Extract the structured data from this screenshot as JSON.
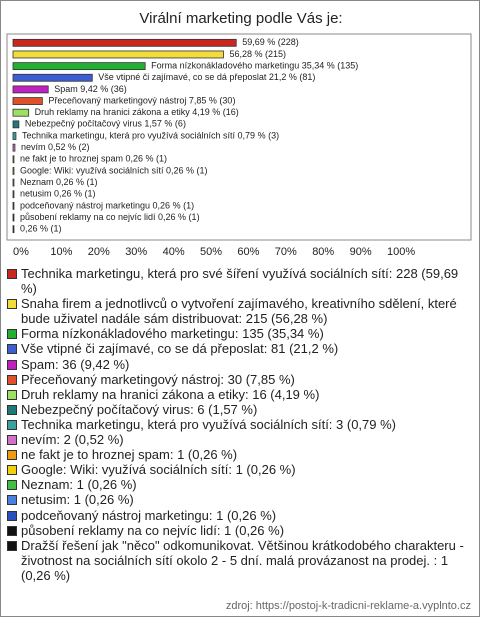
{
  "chart_data": {
    "type": "hbar",
    "title": "Virální marketing podle Vás je:",
    "categories": [
      "Technika marketingu, která pro své šíření využívá sociálních sítí: 228 (59,69 %)",
      "Snaha firem a jednotlivců o vytvoření zajímavého, kreativního sdělení, které bude uživatel nadále sám distribuovat: 215 (56,28 %)",
      "Forma nízkonákladového marketingu: 135 (35,34 %)",
      "Vše vtipné či zajímavé, co se dá přeposlat: 81 (21,2 %)",
      "Spam: 36 (9,42 %)",
      "Přeceňovaný marketingový nástroj: 30 (7,85 %)",
      "Druh reklamy na hranici zákona a etiky: 16 (4,19 %)",
      "Nebezpečný počítačový virus: 6 (1,57 %)",
      "Technika marketingu, která pro využívá sociálních sítí: 3 (0,79 %)",
      "nevím: 2 (0,52 %)",
      "ne fakt je to hroznej spam: 1 (0,26 %)",
      "Google: Wiki:  využívá sociálních sítí: 1 (0,26 %)",
      "Neznam: 1 (0,26 %)",
      "netusim: 1 (0,26 %)",
      "podceňovaný nástroj marketingu: 1 (0,26 %)",
      "působení reklamy na co nejvíc lidí: 1 (0,26 %)",
      "Dražší řešení jak \"něco\" odkomunikovat. Většinou krátkodobého charakteru - životnost na sociálních sítí okolo 2 - 5 dní. malá provázanost na prodej. : 1 (0,26 %)"
    ],
    "values": [
      59.69,
      56.28,
      35.34,
      21.2,
      9.42,
      7.85,
      4.19,
      1.57,
      0.79,
      0.52,
      0.26,
      0.26,
      0.26,
      0.26,
      0.26,
      0.26,
      0.26
    ],
    "value_labels": [
      "59,69 % (228)",
      "56,28 % (215)",
      "Forma nízkonákladového marketingu 35,34 % (135)",
      "Vše vtipné či zajímavé, co se dá přeposlat 21,2 % (81)",
      "Spam 9,42 % (36)",
      "Přeceňovaný marketingový nástroj 7,85 % (30)",
      "Druh reklamy na hranici zákona a etiky 4,19 % (16)",
      "Nebezpečný počítačový virus 1,57 % (6)",
      "Technika marketingu, která pro využívá sociálních sítí 0,79 % (3)",
      "nevím 0,52 % (2)",
      "ne fakt je to hroznej spam 0,26 % (1)",
      "Google: Wiki:  využívá sociálních sítí 0,26 % (1)",
      "Neznam 0,26 % (1)",
      "netusim 0,26 % (1)",
      "podceňovaný nástroj marketingu 0,26 % (1)",
      "působení reklamy na co nejvíc lidí 0,26 % (1)",
      "0,26 % (1)"
    ],
    "colors": [
      "#c8281e",
      "#f2dc3c",
      "#22b033",
      "#3c5ed2",
      "#c020c0",
      "#e0502a",
      "#9ee064",
      "#1e7a78",
      "#3aa0a0",
      "#d070c8",
      "#f09a10",
      "#f0d010",
      "#40c040",
      "#4a80e0",
      "#2a50c0",
      "#111111",
      "#111111"
    ],
    "xlim": [
      0,
      100
    ],
    "xticks": [
      {
        "value": 0,
        "label": "0%"
      },
      {
        "value": 10,
        "label": "10%"
      },
      {
        "value": 20,
        "label": "20%"
      },
      {
        "value": 30,
        "label": "30%"
      },
      {
        "value": 40,
        "label": "40%"
      },
      {
        "value": 50,
        "label": "50%"
      },
      {
        "value": 60,
        "label": "60%"
      },
      {
        "value": 70,
        "label": "70%"
      },
      {
        "value": 80,
        "label": "80%"
      },
      {
        "value": 90,
        "label": "90%"
      },
      {
        "value": 100,
        "label": "100%"
      }
    ],
    "source": "zdroj: https://postoj-k-tradicni-reklame-a.vyplnto.cz"
  }
}
